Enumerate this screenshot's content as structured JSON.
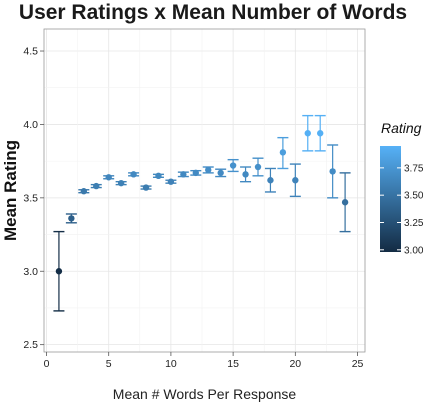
{
  "chart_data": {
    "type": "scatter",
    "title": "User Ratings x Mean Number of Words",
    "xlabel": "Mean # Words Per Response",
    "ylabel": "Mean Rating",
    "xlim": [
      -0.2,
      25.6
    ],
    "ylim": [
      2.45,
      4.65
    ],
    "xticks": [
      "0",
      "5",
      "10",
      "15",
      "20",
      "25"
    ],
    "xtick_values": [
      0,
      5,
      10,
      15,
      20,
      25
    ],
    "yticks": [
      "2.5",
      "3.0",
      "3.5",
      "4.0",
      "4.5"
    ],
    "ytick_values": [
      2.5,
      3.0,
      3.5,
      4.0,
      4.5
    ],
    "grid": true,
    "legend": {
      "title": "Rating",
      "position": "right",
      "labels": [
        "3.75",
        "3.50",
        "3.25",
        "3.00"
      ],
      "label_values": [
        3.75,
        3.5,
        3.25,
        3.0
      ],
      "range": [
        2.98,
        3.95
      ],
      "color_low": "#132b43",
      "color_high": "#56b1f7"
    },
    "series": [
      {
        "points": [
          {
            "x": 1,
            "y": 3.0,
            "lo": 2.73,
            "hi": 3.27
          },
          {
            "x": 2,
            "y": 3.36,
            "lo": 3.33,
            "hi": 3.39
          },
          {
            "x": 3,
            "y": 3.545,
            "lo": 3.535,
            "hi": 3.555
          },
          {
            "x": 4,
            "y": 3.58,
            "lo": 3.57,
            "hi": 3.59
          },
          {
            "x": 5,
            "y": 3.64,
            "lo": 3.63,
            "hi": 3.65
          },
          {
            "x": 6,
            "y": 3.6,
            "lo": 3.59,
            "hi": 3.61
          },
          {
            "x": 7,
            "y": 3.66,
            "lo": 3.65,
            "hi": 3.67
          },
          {
            "x": 8,
            "y": 3.57,
            "lo": 3.56,
            "hi": 3.58
          },
          {
            "x": 9,
            "y": 3.65,
            "lo": 3.64,
            "hi": 3.66
          },
          {
            "x": 10,
            "y": 3.61,
            "lo": 3.6,
            "hi": 3.62
          },
          {
            "x": 11,
            "y": 3.66,
            "lo": 3.645,
            "hi": 3.675
          },
          {
            "x": 12,
            "y": 3.67,
            "lo": 3.655,
            "hi": 3.685
          },
          {
            "x": 13,
            "y": 3.69,
            "lo": 3.67,
            "hi": 3.71
          },
          {
            "x": 14,
            "y": 3.67,
            "lo": 3.645,
            "hi": 3.695
          },
          {
            "x": 15,
            "y": 3.72,
            "lo": 3.68,
            "hi": 3.76
          },
          {
            "x": 16,
            "y": 3.66,
            "lo": 3.61,
            "hi": 3.71
          },
          {
            "x": 17,
            "y": 3.71,
            "lo": 3.65,
            "hi": 3.77
          },
          {
            "x": 18,
            "y": 3.62,
            "lo": 3.54,
            "hi": 3.7
          },
          {
            "x": 19,
            "y": 3.81,
            "lo": 3.7,
            "hi": 3.91
          },
          {
            "x": 20,
            "y": 3.62,
            "lo": 3.51,
            "hi": 3.73
          },
          {
            "x": 21,
            "y": 3.94,
            "lo": 3.82,
            "hi": 4.06
          },
          {
            "x": 22,
            "y": 3.94,
            "lo": 3.82,
            "hi": 4.06
          },
          {
            "x": 23,
            "y": 3.68,
            "lo": 3.5,
            "hi": 3.86
          },
          {
            "x": 24,
            "y": 3.47,
            "lo": 3.27,
            "hi": 3.67
          }
        ]
      }
    ]
  }
}
